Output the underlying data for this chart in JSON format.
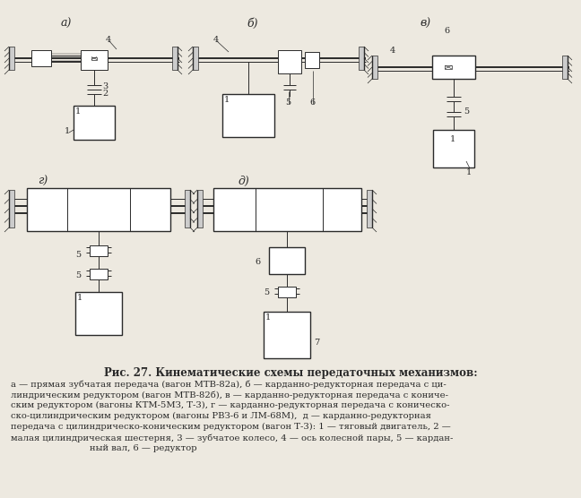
{
  "bg_color": "#ede9e0",
  "line_color": "#2a2a2a",
  "label_a": "а)",
  "label_b": "б)",
  "label_v": "в)",
  "label_g": "г)",
  "label_d": "д)",
  "title": "Рис. 27. Кинематические схемы передаточных механизмов:",
  "cap1": "а — прямая зубчатая передача (вагон МТВ-82а), б — карданно-редукторная передача с ци-",
  "cap2": "линдрическим редуктором (вагон МТВ-82б), в — карданно-редукторная передача с кониче-",
  "cap3": "ским редуктором (вагоны КТМ-5МЗ, Т-3), г — карданно-редукторная передача с коническо-",
  "cap4": "ско-цилиндрическим редуктором (вагоны РВЗ-6 и ЛМ-68М),  д — карданно-редукторная",
  "cap5": "передача с цилиндрическо-коническим редуктором (вагон Т-3): 1 — тяговый двигатель, 2 —",
  "cap6": "малая цилиндрическая шестерня, 3 — зубчатое колесо, 4 — ось колесной пары, 5 — кардан-",
  "cap7": "ный вал, 6 — редуктор"
}
